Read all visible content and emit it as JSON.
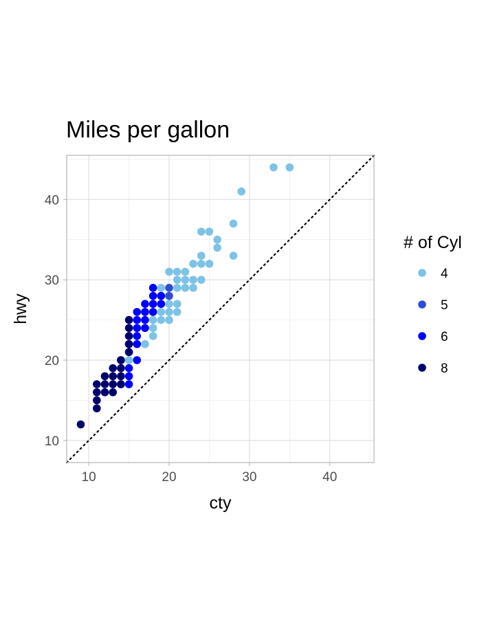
{
  "chart_data": {
    "type": "scatter",
    "title": "Miles per gallon",
    "xlabel": "cty",
    "ylabel": "hwy",
    "xlim": [
      7.25,
      45.5
    ],
    "ylim": [
      7.25,
      45.5
    ],
    "x_ticks": [
      10,
      20,
      30,
      40
    ],
    "y_ticks": [
      10,
      20,
      30,
      40
    ],
    "grid": true,
    "reference_line": "y = x, dotted, black",
    "legend": {
      "title": "# of Cyl",
      "placement": "right",
      "entries": [
        {
          "label": "4",
          "color": "#7cc3e6"
        },
        {
          "label": "5",
          "color": "#2e4fd1"
        },
        {
          "label": "6",
          "color": "#0000ff"
        },
        {
          "label": "8",
          "color": "#00006b"
        }
      ]
    },
    "series": [
      {
        "cyl": "4",
        "color": "#7cc3e6",
        "points": [
          [
            35,
            44
          ],
          [
            33,
            44
          ],
          [
            29,
            41
          ],
          [
            28,
            37
          ],
          [
            28,
            33
          ],
          [
            25,
            36
          ],
          [
            24,
            36
          ],
          [
            26,
            35
          ],
          [
            26,
            34
          ],
          [
            24,
            33
          ],
          [
            23,
            32
          ],
          [
            24,
            32
          ],
          [
            25,
            32
          ],
          [
            22,
            31
          ],
          [
            21,
            31
          ],
          [
            20,
            31
          ],
          [
            24,
            30
          ],
          [
            21,
            30
          ],
          [
            22,
            30
          ],
          [
            23,
            30
          ],
          [
            19,
            29
          ],
          [
            21,
            29
          ],
          [
            22,
            29
          ],
          [
            23,
            29
          ],
          [
            18,
            29
          ],
          [
            20,
            28
          ],
          [
            19,
            28
          ],
          [
            21,
            27
          ],
          [
            19,
            27
          ],
          [
            18,
            27
          ],
          [
            20,
            27
          ],
          [
            21,
            26
          ],
          [
            20,
            26
          ],
          [
            19,
            26
          ],
          [
            18,
            26
          ],
          [
            17,
            26
          ],
          [
            20,
            25
          ],
          [
            19,
            25
          ],
          [
            18,
            25
          ],
          [
            18,
            24
          ],
          [
            18,
            23
          ],
          [
            17,
            22
          ],
          [
            15,
            20
          ]
        ]
      },
      {
        "cyl": "5",
        "color": "#2e4fd1",
        "points": [
          [
            20,
            29
          ],
          [
            20,
            28
          ]
        ]
      },
      {
        "cyl": "6",
        "color": "#0000ff",
        "points": [
          [
            18,
            29
          ],
          [
            18,
            28
          ],
          [
            19,
            28
          ],
          [
            18,
            27
          ],
          [
            19,
            27
          ],
          [
            17,
            27
          ],
          [
            18,
            26
          ],
          [
            17,
            26
          ],
          [
            16,
            26
          ],
          [
            17,
            25
          ],
          [
            16,
            25
          ],
          [
            17,
            24
          ],
          [
            16,
            24
          ],
          [
            16,
            23
          ],
          [
            15,
            22
          ],
          [
            16,
            22
          ],
          [
            15,
            21
          ],
          [
            16,
            20
          ],
          [
            14,
            20
          ],
          [
            15,
            19
          ],
          [
            15,
            18
          ],
          [
            15,
            17
          ],
          [
            14,
            17
          ]
        ]
      },
      {
        "cyl": "8",
        "color": "#00006b",
        "points": [
          [
            15,
            25
          ],
          [
            15,
            24
          ],
          [
            15,
            23
          ],
          [
            15,
            22
          ],
          [
            15,
            21
          ],
          [
            14,
            20
          ],
          [
            13,
            19
          ],
          [
            14,
            19
          ],
          [
            14,
            18
          ],
          [
            13,
            18
          ],
          [
            12,
            18
          ],
          [
            13,
            17
          ],
          [
            12,
            17
          ],
          [
            11,
            17
          ],
          [
            14,
            17
          ],
          [
            13,
            16
          ],
          [
            12,
            16
          ],
          [
            11,
            16
          ],
          [
            11,
            15
          ],
          [
            11,
            14
          ],
          [
            9,
            12
          ]
        ]
      }
    ]
  }
}
